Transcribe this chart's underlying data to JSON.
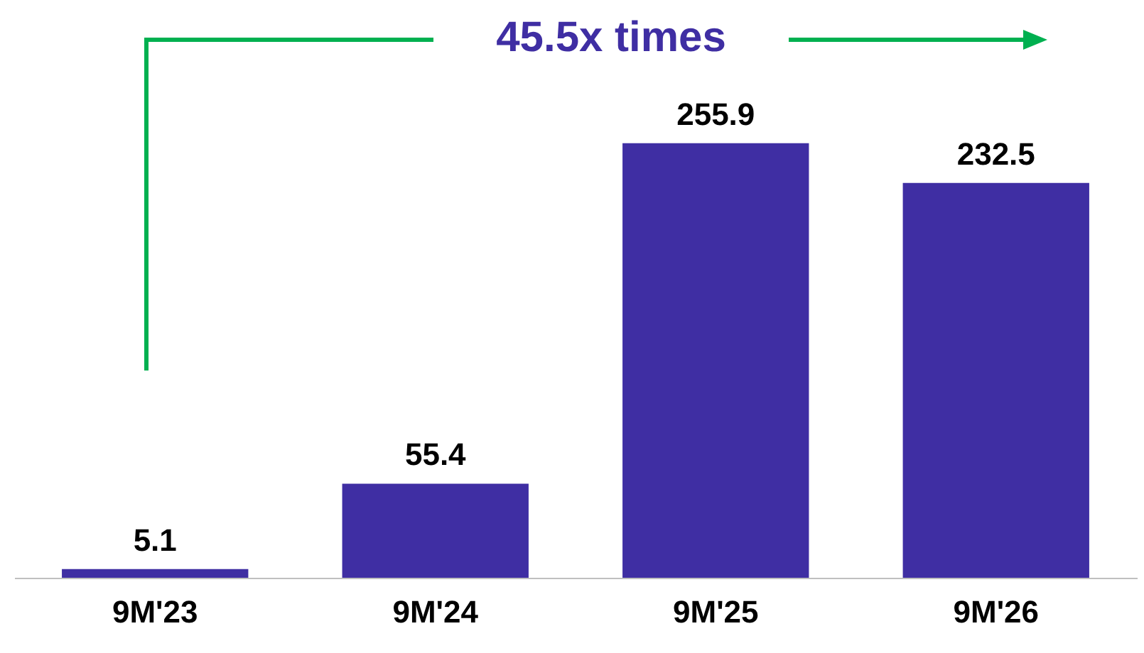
{
  "chart_data": {
    "type": "bar",
    "categories": [
      "9M'23",
      "9M'24",
      "9M'25",
      "9M'26"
    ],
    "values": [
      5.1,
      55.4,
      255.9,
      232.5
    ],
    "color": "#3f2ea3",
    "data_labels": true,
    "annotations": [
      "45.5x times"
    ]
  }
}
